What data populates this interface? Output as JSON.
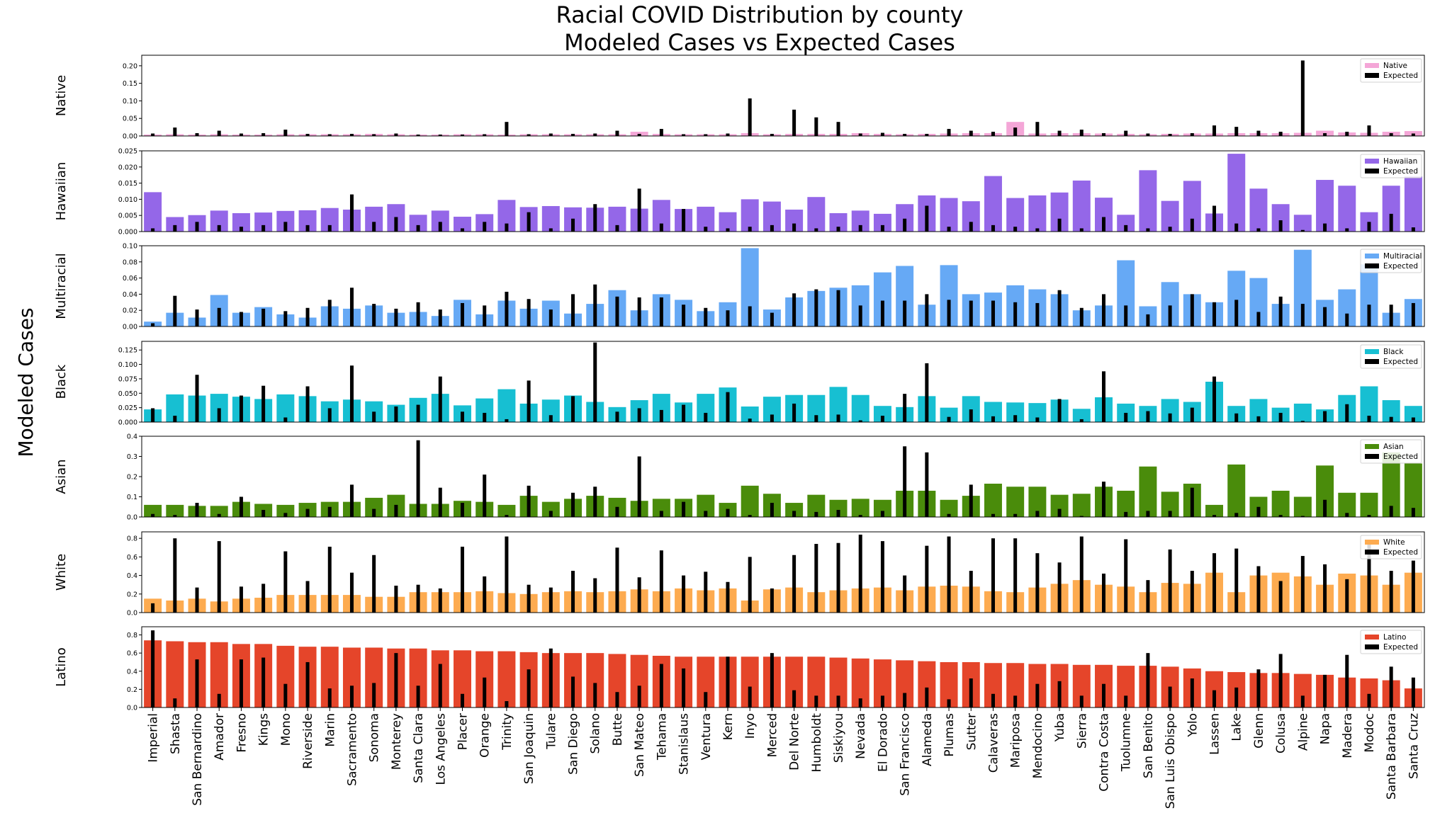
{
  "chart_data": {
    "type": "bar",
    "title": [
      "Racial COVID Distribution by county",
      "Modeled Cases vs Expected Cases"
    ],
    "ylabel": "Modeled Cases",
    "categories": [
      "Imperial",
      "Shasta",
      "San Bernardino",
      "Amador",
      "Fresno",
      "Kings",
      "Mono",
      "Riverside",
      "Marin",
      "Sacramento",
      "Sonoma",
      "Monterey",
      "Santa Clara",
      "Los Angeles",
      "Placer",
      "Orange",
      "Trinity",
      "San Joaquin",
      "Tulare",
      "San Diego",
      "Solano",
      "Butte",
      "San Mateo",
      "Tehama",
      "Stanislaus",
      "Ventura",
      "Kern",
      "Inyo",
      "Merced",
      "Del Norte",
      "Humboldt",
      "Siskiyou",
      "Nevada",
      "El Dorado",
      "San Francisco",
      "Alameda",
      "Plumas",
      "Sutter",
      "Calaveras",
      "Mariposa",
      "Mendocino",
      "Yuba",
      "Sierra",
      "Contra Costa",
      "Tuolumne",
      "San Benito",
      "San Luis Obispo",
      "Yolo",
      "Lassen",
      "Lake",
      "Glenn",
      "Colusa",
      "Alpine",
      "Napa",
      "Madera",
      "Modoc",
      "Santa Barbara",
      "Santa Cruz"
    ],
    "legend_position": "top-right",
    "panels": [
      {
        "name": "Native",
        "color": "#f4a6d7",
        "ylim": [
          0,
          0.23
        ],
        "yticks": [
          0.0,
          0.05,
          0.1,
          0.15,
          0.2
        ],
        "decimals": 2,
        "modeled": [
          0.004,
          0.005,
          0.004,
          0.005,
          0.004,
          0.004,
          0.005,
          0.005,
          0.005,
          0.005,
          0.006,
          0.005,
          0.004,
          0.004,
          0.005,
          0.005,
          0.004,
          0.005,
          0.005,
          0.005,
          0.005,
          0.005,
          0.012,
          0.006,
          0.005,
          0.005,
          0.005,
          0.008,
          0.005,
          0.006,
          0.006,
          0.006,
          0.008,
          0.006,
          0.005,
          0.006,
          0.007,
          0.008,
          0.008,
          0.04,
          0.007,
          0.008,
          0.008,
          0.007,
          0.006,
          0.005,
          0.006,
          0.007,
          0.007,
          0.008,
          0.008,
          0.008,
          0.009,
          0.015,
          0.01,
          0.009,
          0.012,
          0.014
        ],
        "expected": [
          0.007,
          0.024,
          0.008,
          0.015,
          0.007,
          0.008,
          0.018,
          0.006,
          0.005,
          0.006,
          0.005,
          0.007,
          0.004,
          0.004,
          0.004,
          0.005,
          0.04,
          0.005,
          0.007,
          0.006,
          0.007,
          0.015,
          0.006,
          0.02,
          0.005,
          0.005,
          0.007,
          0.107,
          0.006,
          0.075,
          0.053,
          0.04,
          0.007,
          0.009,
          0.006,
          0.006,
          0.02,
          0.015,
          0.012,
          0.024,
          0.04,
          0.015,
          0.018,
          0.008,
          0.015,
          0.007,
          0.006,
          0.008,
          0.03,
          0.026,
          0.015,
          0.012,
          0.215,
          0.008,
          0.012,
          0.03,
          0.008,
          0.007
        ]
      },
      {
        "name": "Hawaiian",
        "color": "#9467e8",
        "ylim": [
          0,
          0.025
        ],
        "yticks": [
          0.0,
          0.005,
          0.01,
          0.015,
          0.02,
          0.025
        ],
        "decimals": 3,
        "modeled": [
          0.0122,
          0.0045,
          0.0051,
          0.0065,
          0.0057,
          0.0059,
          0.0064,
          0.0066,
          0.0073,
          0.0068,
          0.0077,
          0.0085,
          0.0052,
          0.0065,
          0.0046,
          0.0054,
          0.0098,
          0.0076,
          0.0079,
          0.0075,
          0.0074,
          0.0077,
          0.0071,
          0.0098,
          0.007,
          0.0077,
          0.006,
          0.01,
          0.0093,
          0.0068,
          0.0107,
          0.0057,
          0.0065,
          0.0055,
          0.0085,
          0.0112,
          0.0104,
          0.0094,
          0.0172,
          0.0104,
          0.0112,
          0.0121,
          0.0158,
          0.0105,
          0.0052,
          0.019,
          0.0095,
          0.0157,
          0.0056,
          0.0241,
          0.0133,
          0.0085,
          0.0052,
          0.016,
          0.0142,
          0.006,
          0.0142,
          0.0171
        ],
        "expected": [
          0.001,
          0.002,
          0.003,
          0.002,
          0.0015,
          0.002,
          0.003,
          0.002,
          0.002,
          0.0115,
          0.003,
          0.0045,
          0.002,
          0.003,
          0.001,
          0.003,
          0.0025,
          0.006,
          0.001,
          0.004,
          0.0085,
          0.002,
          0.0133,
          0.0025,
          0.007,
          0.0015,
          0.001,
          0.0015,
          0.002,
          0.0025,
          0.001,
          0.0015,
          0.002,
          0.002,
          0.004,
          0.008,
          0.0015,
          0.003,
          0.002,
          0.0015,
          0.001,
          0.004,
          0.001,
          0.0045,
          0.002,
          0.001,
          0.0015,
          0.004,
          0.008,
          0.0025,
          0.001,
          0.0035,
          0.0005,
          0.0025,
          0.001,
          0.003,
          0.0055,
          0.0013
        ]
      },
      {
        "name": "Multiracial",
        "color": "#66a9f5",
        "ylim": [
          0,
          0.1
        ],
        "yticks": [
          0.0,
          0.02,
          0.04,
          0.06,
          0.08,
          0.1
        ],
        "decimals": 2,
        "modeled": [
          0.006,
          0.017,
          0.011,
          0.039,
          0.017,
          0.024,
          0.015,
          0.011,
          0.025,
          0.022,
          0.026,
          0.017,
          0.018,
          0.013,
          0.033,
          0.015,
          0.032,
          0.022,
          0.032,
          0.016,
          0.028,
          0.045,
          0.02,
          0.04,
          0.033,
          0.019,
          0.03,
          0.097,
          0.021,
          0.036,
          0.044,
          0.048,
          0.051,
          0.067,
          0.075,
          0.027,
          0.076,
          0.04,
          0.042,
          0.051,
          0.046,
          0.04,
          0.02,
          0.026,
          0.082,
          0.025,
          0.055,
          0.04,
          0.03,
          0.069,
          0.06,
          0.028,
          0.095,
          0.033,
          0.046,
          0.077,
          0.017,
          0.034
        ],
        "expected": [
          0.004,
          0.038,
          0.021,
          0.023,
          0.018,
          0.022,
          0.019,
          0.023,
          0.033,
          0.048,
          0.028,
          0.022,
          0.03,
          0.021,
          0.029,
          0.026,
          0.043,
          0.034,
          0.021,
          0.04,
          0.052,
          0.037,
          0.036,
          0.036,
          0.027,
          0.023,
          0.02,
          0.025,
          0.017,
          0.041,
          0.046,
          0.045,
          0.026,
          0.032,
          0.032,
          0.04,
          0.033,
          0.032,
          0.032,
          0.03,
          0.029,
          0.045,
          0.023,
          0.04,
          0.026,
          0.015,
          0.026,
          0.04,
          0.03,
          0.033,
          0.018,
          0.037,
          0.028,
          0.024,
          0.016,
          0.027,
          0.027,
          0.029
        ]
      },
      {
        "name": "Black",
        "color": "#17bfd2",
        "ylim": [
          0,
          0.14
        ],
        "yticks": [
          0.0,
          0.025,
          0.05,
          0.075,
          0.1,
          0.125
        ],
        "decimals": 3,
        "modeled": [
          0.022,
          0.048,
          0.046,
          0.049,
          0.044,
          0.04,
          0.048,
          0.045,
          0.036,
          0.039,
          0.036,
          0.03,
          0.042,
          0.049,
          0.029,
          0.041,
          0.057,
          0.032,
          0.039,
          0.046,
          0.035,
          0.026,
          0.038,
          0.049,
          0.034,
          0.049,
          0.06,
          0.027,
          0.044,
          0.047,
          0.047,
          0.061,
          0.047,
          0.028,
          0.026,
          0.045,
          0.025,
          0.045,
          0.035,
          0.034,
          0.033,
          0.039,
          0.023,
          0.043,
          0.032,
          0.028,
          0.04,
          0.035,
          0.07,
          0.028,
          0.04,
          0.025,
          0.032,
          0.022,
          0.047,
          0.062,
          0.038,
          0.028
        ],
        "expected": [
          0.024,
          0.011,
          0.082,
          0.024,
          0.046,
          0.063,
          0.008,
          0.062,
          0.024,
          0.098,
          0.018,
          0.027,
          0.03,
          0.079,
          0.018,
          0.016,
          0.005,
          0.072,
          0.012,
          0.045,
          0.138,
          0.018,
          0.024,
          0.021,
          0.03,
          0.016,
          0.052,
          0.006,
          0.013,
          0.032,
          0.012,
          0.013,
          0.003,
          0.011,
          0.049,
          0.102,
          0.009,
          0.022,
          0.01,
          0.012,
          0.008,
          0.04,
          0.005,
          0.088,
          0.016,
          0.019,
          0.015,
          0.025,
          0.079,
          0.015,
          0.01,
          0.016,
          0.002,
          0.019,
          0.031,
          0.011,
          0.009,
          0.008
        ]
      },
      {
        "name": "Asian",
        "color": "#4a8c0b",
        "ylim": [
          0,
          0.4
        ],
        "yticks": [
          0.0,
          0.1,
          0.2,
          0.3,
          0.4
        ],
        "decimals": 1,
        "modeled": [
          0.06,
          0.06,
          0.055,
          0.055,
          0.075,
          0.065,
          0.06,
          0.07,
          0.075,
          0.075,
          0.095,
          0.11,
          0.065,
          0.065,
          0.08,
          0.075,
          0.06,
          0.105,
          0.075,
          0.09,
          0.105,
          0.095,
          0.08,
          0.09,
          0.09,
          0.11,
          0.07,
          0.155,
          0.115,
          0.07,
          0.11,
          0.085,
          0.09,
          0.085,
          0.13,
          0.13,
          0.085,
          0.105,
          0.165,
          0.15,
          0.15,
          0.11,
          0.115,
          0.15,
          0.13,
          0.25,
          0.125,
          0.165,
          0.06,
          0.26,
          0.1,
          0.13,
          0.1,
          0.255,
          0.12,
          0.12,
          0.32,
          0.265
        ],
        "expected": [
          0.015,
          0.01,
          0.07,
          0.015,
          0.1,
          0.035,
          0.02,
          0.04,
          0.05,
          0.16,
          0.04,
          0.06,
          0.38,
          0.145,
          0.07,
          0.21,
          0.01,
          0.155,
          0.03,
          0.12,
          0.15,
          0.05,
          0.3,
          0.03,
          0.075,
          0.03,
          0.04,
          0.01,
          0.07,
          0.03,
          0.025,
          0.035,
          0.01,
          0.03,
          0.35,
          0.32,
          0.015,
          0.16,
          0.015,
          0.015,
          0.03,
          0.04,
          0.005,
          0.175,
          0.025,
          0.03,
          0.03,
          0.145,
          0.01,
          0.02,
          0.05,
          0.01,
          0.005,
          0.085,
          0.02,
          0.01,
          0.055,
          0.045
        ]
      },
      {
        "name": "White",
        "color": "#fdab50",
        "ylim": [
          0,
          0.87
        ],
        "yticks": [
          0.0,
          0.2,
          0.4,
          0.6,
          0.8
        ],
        "decimals": 1,
        "modeled": [
          0.15,
          0.13,
          0.15,
          0.12,
          0.15,
          0.16,
          0.19,
          0.19,
          0.19,
          0.19,
          0.17,
          0.17,
          0.22,
          0.22,
          0.22,
          0.23,
          0.21,
          0.2,
          0.22,
          0.23,
          0.22,
          0.23,
          0.25,
          0.23,
          0.26,
          0.24,
          0.26,
          0.13,
          0.25,
          0.27,
          0.22,
          0.24,
          0.26,
          0.27,
          0.24,
          0.28,
          0.29,
          0.28,
          0.23,
          0.22,
          0.27,
          0.31,
          0.35,
          0.3,
          0.28,
          0.22,
          0.32,
          0.31,
          0.43,
          0.22,
          0.4,
          0.43,
          0.39,
          0.3,
          0.42,
          0.4,
          0.3,
          0.43
        ],
        "expected": [
          0.1,
          0.8,
          0.27,
          0.77,
          0.28,
          0.31,
          0.66,
          0.34,
          0.71,
          0.43,
          0.62,
          0.29,
          0.3,
          0.26,
          0.71,
          0.39,
          0.82,
          0.3,
          0.27,
          0.45,
          0.37,
          0.7,
          0.38,
          0.67,
          0.4,
          0.44,
          0.33,
          0.6,
          0.26,
          0.62,
          0.74,
          0.75,
          0.84,
          0.77,
          0.4,
          0.72,
          0.82,
          0.45,
          0.8,
          0.8,
          0.64,
          0.54,
          0.82,
          0.42,
          0.79,
          0.35,
          0.68,
          0.45,
          0.64,
          0.69,
          0.5,
          0.34,
          0.61,
          0.52,
          0.36,
          0.77,
          0.45,
          0.56
        ]
      },
      {
        "name": "Latino",
        "color": "#e5452a",
        "ylim": [
          0,
          0.89
        ],
        "yticks": [
          0.0,
          0.2,
          0.4,
          0.6,
          0.8
        ],
        "decimals": 1,
        "modeled": [
          0.74,
          0.73,
          0.72,
          0.72,
          0.7,
          0.7,
          0.68,
          0.67,
          0.67,
          0.66,
          0.66,
          0.65,
          0.65,
          0.63,
          0.63,
          0.62,
          0.62,
          0.61,
          0.6,
          0.6,
          0.6,
          0.59,
          0.58,
          0.57,
          0.56,
          0.56,
          0.56,
          0.56,
          0.56,
          0.56,
          0.56,
          0.55,
          0.54,
          0.53,
          0.52,
          0.51,
          0.5,
          0.5,
          0.49,
          0.49,
          0.48,
          0.48,
          0.47,
          0.47,
          0.46,
          0.46,
          0.45,
          0.43,
          0.4,
          0.39,
          0.38,
          0.38,
          0.37,
          0.36,
          0.33,
          0.32,
          0.3,
          0.21
        ],
        "expected": [
          0.85,
          0.1,
          0.53,
          0.15,
          0.53,
          0.55,
          0.26,
          0.5,
          0.21,
          0.24,
          0.27,
          0.6,
          0.24,
          0.48,
          0.15,
          0.33,
          0.07,
          0.42,
          0.65,
          0.34,
          0.27,
          0.17,
          0.24,
          0.48,
          0.43,
          0.17,
          0.56,
          0.23,
          0.6,
          0.19,
          0.13,
          0.13,
          0.1,
          0.13,
          0.16,
          0.22,
          0.09,
          0.32,
          0.15,
          0.13,
          0.26,
          0.29,
          0.13,
          0.26,
          0.13,
          0.6,
          0.23,
          0.32,
          0.19,
          0.22,
          0.42,
          0.59,
          0.13,
          0.36,
          0.58,
          0.15,
          0.45,
          0.33
        ]
      }
    ],
    "legend_expected_label": "Expected"
  },
  "colors": {
    "expected": "#000000",
    "axes": "#000000"
  }
}
